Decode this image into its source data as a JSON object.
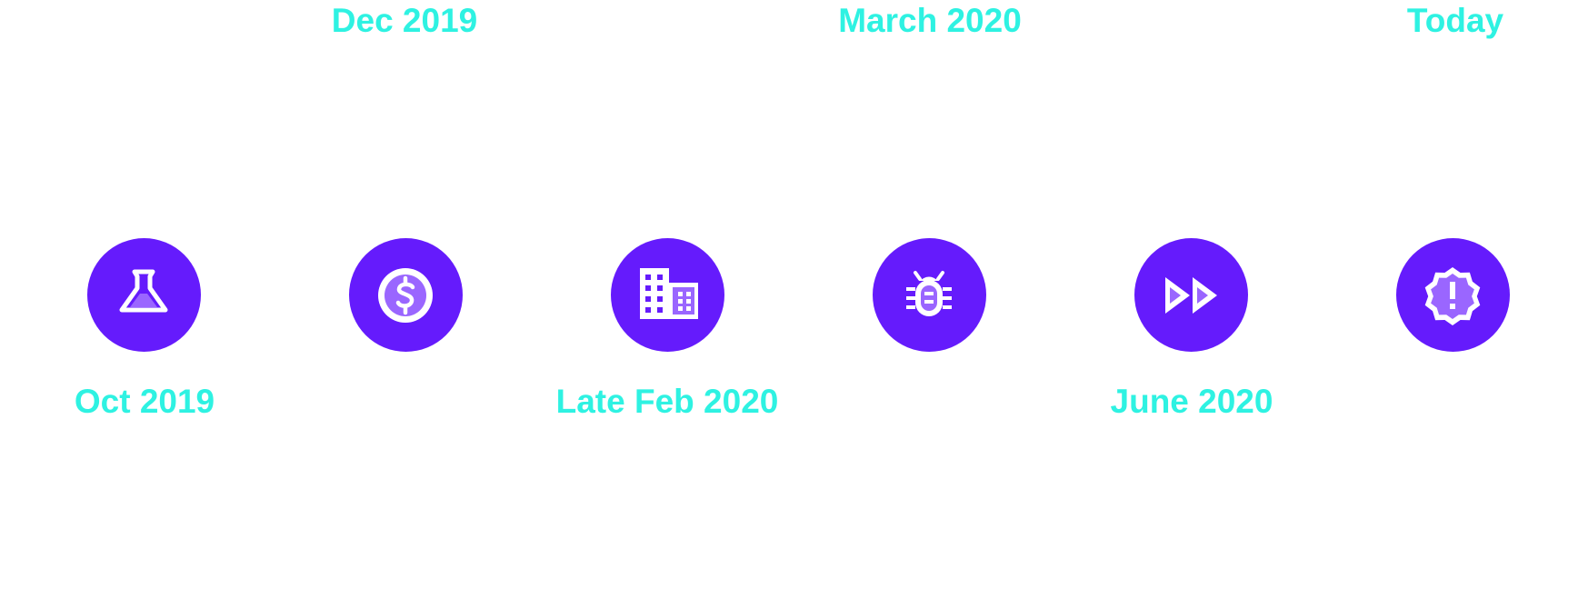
{
  "colors": {
    "circle": "#651BFC",
    "label": "#2EF2E2",
    "icon_stroke": "#FFFFFF",
    "icon_fill": "#9A66FF"
  },
  "milestones": [
    {
      "label": "Oct 2019",
      "label_side": "bottom",
      "icon": "flask-icon"
    },
    {
      "label": "Dec 2019",
      "label_side": "top",
      "icon": "dollar-coin-icon"
    },
    {
      "label": "Late Feb 2020",
      "label_side": "bottom",
      "icon": "office-building-icon"
    },
    {
      "label": "March 2020",
      "label_side": "top",
      "icon": "bug-icon"
    },
    {
      "label": "June 2020",
      "label_side": "bottom",
      "icon": "fast-forward-icon"
    },
    {
      "label": "Today",
      "label_side": "top",
      "icon": "alert-badge-icon"
    }
  ]
}
